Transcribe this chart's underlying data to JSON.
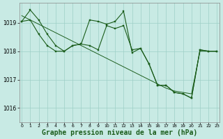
{
  "background_color": "#c8eae4",
  "grid_color": "#9ecfc7",
  "line_color": "#1a5c1a",
  "marker_color": "#1a5c1a",
  "xlabel": "Graphe pression niveau de la mer (hPa)",
  "xlabel_fontsize": 7,
  "yticks": [
    1016,
    1017,
    1018,
    1019
  ],
  "xticks": [
    0,
    1,
    2,
    3,
    4,
    5,
    6,
    7,
    8,
    9,
    10,
    11,
    12,
    13,
    14,
    15,
    16,
    17,
    18,
    19,
    20,
    21,
    22,
    23
  ],
  "ylim": [
    1015.5,
    1019.7
  ],
  "xlim": [
    -0.3,
    23.3
  ],
  "line1_x": [
    0,
    1,
    2,
    3,
    4,
    5,
    6,
    7,
    8,
    9,
    10,
    11,
    12,
    13,
    14,
    15,
    16,
    17,
    18,
    19,
    20,
    21,
    22,
    23
  ],
  "line1_y": [
    1019.05,
    1019.45,
    1019.1,
    1018.6,
    1018.2,
    1018.0,
    1018.2,
    1018.25,
    1019.1,
    1019.05,
    1018.95,
    1019.05,
    1019.4,
    1017.95,
    1018.1,
    1017.55,
    1016.8,
    1016.8,
    1016.55,
    1016.5,
    1016.35,
    1018.05,
    1018.0,
    1018.0
  ],
  "line2_x": [
    0,
    1,
    2,
    3,
    4,
    5,
    6,
    7,
    8,
    9,
    10,
    11,
    12,
    13,
    14,
    15,
    16,
    17,
    18,
    19,
    20,
    21,
    22,
    23
  ],
  "line2_y": [
    1019.05,
    1019.1,
    1018.6,
    1018.2,
    1018.0,
    1018.0,
    1018.2,
    1018.25,
    1018.2,
    1018.05,
    1018.9,
    1018.8,
    1018.9,
    1018.05,
    1018.1,
    1017.55,
    1016.8,
    1016.8,
    1016.55,
    1016.5,
    1016.35,
    1018.05,
    1018.0,
    1018.0
  ],
  "line3_x": [
    0,
    1,
    2,
    3,
    4,
    5,
    6,
    7,
    8,
    9,
    10,
    11,
    12,
    13,
    14,
    15,
    16,
    17,
    18,
    19,
    20,
    21,
    22,
    23
  ],
  "line3_y": [
    1019.25,
    1019.1,
    1018.95,
    1018.8,
    1018.65,
    1018.5,
    1018.35,
    1018.2,
    1018.05,
    1017.9,
    1017.75,
    1017.6,
    1017.45,
    1017.3,
    1017.15,
    1017.0,
    1016.85,
    1016.7,
    1016.6,
    1016.55,
    1016.5,
    1018.0,
    1018.0,
    1018.0
  ]
}
